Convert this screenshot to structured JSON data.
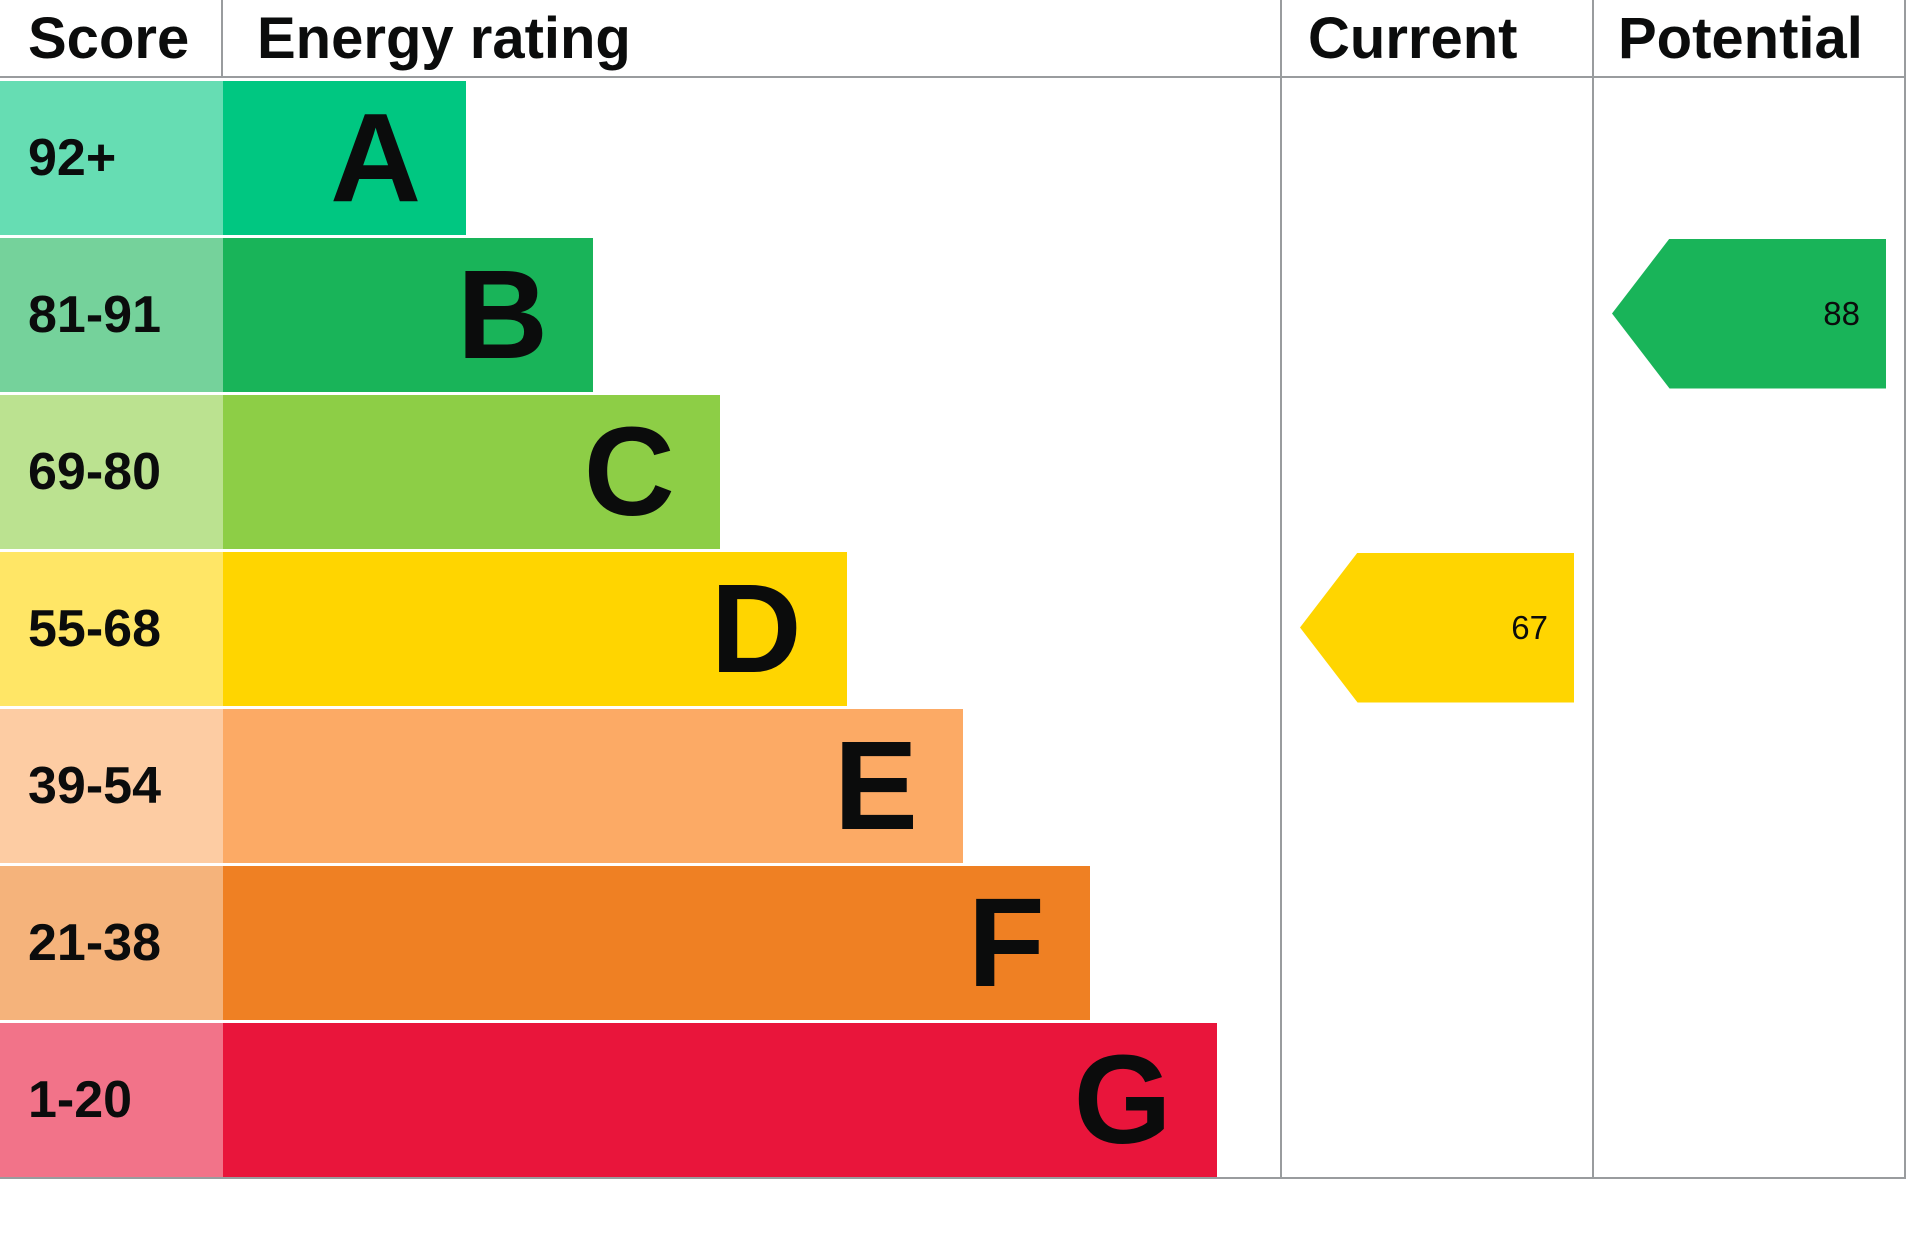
{
  "header": {
    "score": "Score",
    "energy_rating": "Energy rating",
    "current": "Current",
    "potential": "Potential"
  },
  "chart_data": {
    "type": "bar",
    "chart_kind": "epc-energy-rating",
    "title": "Energy rating",
    "columns": [
      "Score",
      "Energy rating",
      "Current",
      "Potential"
    ],
    "bands": [
      {
        "score": "92+",
        "letter": "A",
        "color": "#00c781",
        "tint": "#66ddb3",
        "width_pct": 23
      },
      {
        "score": "81-91",
        "letter": "B",
        "color": "#19b459",
        "tint": "#75d29b",
        "width_pct": 35
      },
      {
        "score": "69-80",
        "letter": "C",
        "color": "#8dce46",
        "tint": "#bbe290",
        "width_pct": 47
      },
      {
        "score": "55-68",
        "letter": "D",
        "color": "#ffd500",
        "tint": "#ffe666",
        "width_pct": 59
      },
      {
        "score": "39-54",
        "letter": "E",
        "color": "#fcaa65",
        "tint": "#fdcca3",
        "width_pct": 70
      },
      {
        "score": "21-38",
        "letter": "F",
        "color": "#ef8023",
        "tint": "#f5b37b",
        "width_pct": 82
      },
      {
        "score": "1-20",
        "letter": "G",
        "color": "#e9153b",
        "tint": "#f27389",
        "width_pct": 94
      }
    ],
    "current": {
      "value": "67",
      "band": "D",
      "color": "#ffd500"
    },
    "potential": {
      "value": "88",
      "band": "B",
      "color": "#19b459"
    }
  }
}
